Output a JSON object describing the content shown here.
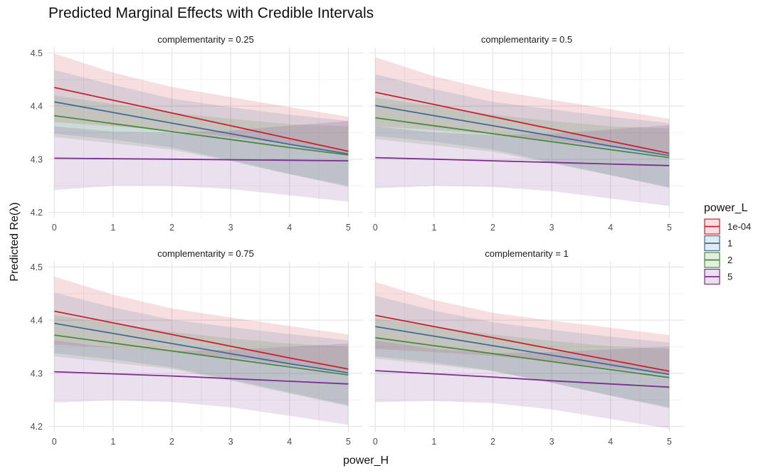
{
  "colors": {
    "1e-04": "#c8202f",
    "1": "#3f6b9a",
    "2": "#4a8a3e",
    "5": "#7b2f8e"
  },
  "chart_data": {
    "type": "line",
    "title": "Predicted Marginal Effects with Credible Intervals",
    "xlabel": "power_H",
    "ylabel": "Predicted Re(λ)",
    "xlim": [
      -0.1,
      5.25
    ],
    "ylim": [
      4.19,
      4.51
    ],
    "xticks": [
      0,
      1,
      2,
      3,
      4,
      5
    ],
    "yticks": [
      4.2,
      4.3,
      4.4,
      4.5
    ],
    "grid": true,
    "legend_title": "power_L",
    "legend_position": "right",
    "legend": [
      "1e-04",
      "1",
      "2",
      "5"
    ],
    "panels": [
      {
        "label": "complementarity = 0.25",
        "x": [
          0,
          1,
          2,
          3,
          4,
          5
        ],
        "series": [
          {
            "name": "1e-04",
            "mean": [
              4.435,
              4.411,
              4.387,
              4.363,
              4.339,
              4.315
            ],
            "lower": [
              4.37,
              4.362,
              4.354,
              4.342,
              4.328,
              4.312
            ],
            "upper": [
              4.499,
              4.463,
              4.436,
              4.417,
              4.398,
              4.38
            ]
          },
          {
            "name": "1",
            "mean": [
              4.408,
              4.388,
              4.368,
              4.348,
              4.328,
              4.31
            ],
            "lower": [
              4.348,
              4.337,
              4.322,
              4.298,
              4.272,
              4.248
            ],
            "upper": [
              4.468,
              4.44,
              4.414,
              4.398,
              4.384,
              4.372
            ]
          },
          {
            "name": "2",
            "mean": [
              4.382,
              4.367,
              4.352,
              4.337,
              4.322,
              4.308
            ],
            "lower": [
              4.342,
              4.33,
              4.318,
              4.296,
              4.272,
              4.25
            ],
            "upper": [
              4.42,
              4.404,
              4.388,
              4.376,
              4.366,
              4.362
            ]
          },
          {
            "name": "5",
            "mean": [
              4.302,
              4.301,
              4.3,
              4.299,
              4.298,
              4.297
            ],
            "lower": [
              4.242,
              4.25,
              4.25,
              4.244,
              4.232,
              4.22
            ],
            "upper": [
              4.362,
              4.352,
              4.35,
              4.354,
              4.363,
              4.372
            ]
          }
        ]
      },
      {
        "label": "complementarity = 0.5",
        "x": [
          0,
          1,
          2,
          3,
          4,
          5
        ],
        "series": [
          {
            "name": "1e-04",
            "mean": [
              4.426,
              4.403,
              4.38,
              4.357,
              4.334,
              4.311
            ],
            "lower": [
              4.362,
              4.355,
              4.348,
              4.336,
              4.322,
              4.31
            ],
            "upper": [
              4.492,
              4.456,
              4.43,
              4.412,
              4.394,
              4.376
            ]
          },
          {
            "name": "1",
            "mean": [
              4.401,
              4.382,
              4.363,
              4.344,
              4.325,
              4.307
            ],
            "lower": [
              4.344,
              4.333,
              4.318,
              4.294,
              4.27,
              4.246
            ],
            "upper": [
              4.46,
              4.432,
              4.408,
              4.394,
              4.38,
              4.368
            ]
          },
          {
            "name": "2",
            "mean": [
              4.378,
              4.363,
              4.348,
              4.333,
              4.318,
              4.303
            ],
            "lower": [
              4.338,
              4.326,
              4.314,
              4.292,
              4.27,
              4.248
            ],
            "upper": [
              4.416,
              4.4,
              4.384,
              4.372,
              4.362,
              4.358
            ]
          },
          {
            "name": "5",
            "mean": [
              4.303,
              4.3,
              4.297,
              4.294,
              4.291,
              4.288
            ],
            "lower": [
              4.245,
              4.25,
              4.248,
              4.24,
              4.226,
              4.212
            ],
            "upper": [
              4.362,
              4.35,
              4.346,
              4.348,
              4.356,
              4.364
            ]
          }
        ]
      },
      {
        "label": "complementarity = 0.75",
        "x": [
          0,
          1,
          2,
          3,
          4,
          5
        ],
        "series": [
          {
            "name": "1e-04",
            "mean": [
              4.417,
              4.395,
              4.373,
              4.351,
              4.329,
              4.308
            ],
            "lower": [
              4.354,
              4.348,
              4.341,
              4.33,
              4.316,
              4.304
            ],
            "upper": [
              4.482,
              4.448,
              4.422,
              4.405,
              4.389,
              4.373
            ]
          },
          {
            "name": "1",
            "mean": [
              4.394,
              4.375,
              4.356,
              4.337,
              4.318,
              4.301
            ],
            "lower": [
              4.338,
              4.326,
              4.311,
              4.288,
              4.264,
              4.24
            ],
            "upper": [
              4.452,
              4.424,
              4.401,
              4.387,
              4.374,
              4.362
            ]
          },
          {
            "name": "2",
            "mean": [
              4.372,
              4.357,
              4.342,
              4.327,
              4.312,
              4.297
            ],
            "lower": [
              4.332,
              4.32,
              4.308,
              4.286,
              4.262,
              4.238
            ],
            "upper": [
              4.41,
              4.394,
              4.378,
              4.366,
              4.356,
              4.35
            ]
          },
          {
            "name": "5",
            "mean": [
              4.303,
              4.299,
              4.295,
              4.29,
              4.285,
              4.28
            ],
            "lower": [
              4.245,
              4.249,
              4.246,
              4.236,
              4.22,
              4.203
            ],
            "upper": [
              4.362,
              4.348,
              4.342,
              4.344,
              4.35,
              4.356
            ]
          }
        ]
      },
      {
        "label": "complementarity = 1",
        "x": [
          0,
          1,
          2,
          3,
          4,
          5
        ],
        "series": [
          {
            "name": "1e-04",
            "mean": [
              4.409,
              4.388,
              4.367,
              4.346,
              4.325,
              4.304
            ],
            "lower": [
              4.346,
              4.34,
              4.333,
              4.322,
              4.31,
              4.298
            ],
            "upper": [
              4.472,
              4.438,
              4.414,
              4.399,
              4.386,
              4.372
            ]
          },
          {
            "name": "1",
            "mean": [
              4.388,
              4.37,
              4.352,
              4.334,
              4.316,
              4.298
            ],
            "lower": [
              4.332,
              4.32,
              4.305,
              4.282,
              4.258,
              4.236
            ],
            "upper": [
              4.446,
              4.418,
              4.396,
              4.382,
              4.369,
              4.358
            ]
          },
          {
            "name": "2",
            "mean": [
              4.367,
              4.352,
              4.337,
              4.322,
              4.307,
              4.292
            ],
            "lower": [
              4.328,
              4.316,
              4.304,
              4.282,
              4.258,
              4.234
            ],
            "upper": [
              4.404,
              4.388,
              4.373,
              4.361,
              4.351,
              4.346
            ]
          },
          {
            "name": "5",
            "mean": [
              4.305,
              4.299,
              4.293,
              4.286,
              4.28,
              4.274
            ],
            "lower": [
              4.246,
              4.248,
              4.244,
              4.232,
              4.214,
              4.196
            ],
            "upper": [
              4.362,
              4.346,
              4.338,
              4.34,
              4.345,
              4.35
            ]
          }
        ]
      }
    ]
  }
}
